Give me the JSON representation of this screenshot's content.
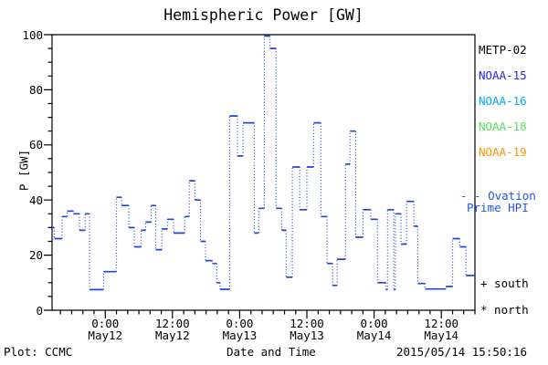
{
  "title": "Hemispheric Power [GW]",
  "y_axis": {
    "label": "P [GW]",
    "ticks": [
      0,
      20,
      40,
      60,
      80,
      100
    ],
    "minor_step": 5
  },
  "x_axis": {
    "label": "Date and Time",
    "major_hours": [
      0,
      12,
      24,
      36,
      48,
      60
    ],
    "minor_step_hours": 2,
    "ticks": [
      {
        "time": "0:00",
        "date": "May12"
      },
      {
        "time": "12:00",
        "date": "May12"
      },
      {
        "time": "0:00",
        "date": "May13"
      },
      {
        "time": "12:00",
        "date": "May13"
      },
      {
        "time": "0:00",
        "date": "May14"
      },
      {
        "time": "12:00",
        "date": "May14"
      }
    ]
  },
  "legend": [
    {
      "label": "METP-02",
      "color": "#000000"
    },
    {
      "label": "NOAA-15",
      "color": "#2222ff"
    },
    {
      "label": "NOAA-16",
      "color": "#00aaff"
    },
    {
      "label": "NOAA-18",
      "color": "#55e060"
    },
    {
      "label": "NOAA-19",
      "color": "#ff9500"
    }
  ],
  "annotations": {
    "ovation_line1": "- - Ovation",
    "ovation_line2": "Prime HPI",
    "ovation_color": "#2255ee",
    "south_marker": "+ south",
    "north_marker": "* north"
  },
  "footer": {
    "credit": "Plot: CCMC",
    "timestamp": "2015/05/14 15:50:16"
  },
  "chart_data": {
    "type": "line",
    "subtype": "step-histogram-dotted",
    "title": "Hemispheric Power [GW]",
    "xlabel": "Date and Time",
    "ylabel": "P [GW]",
    "ylim": [
      0,
      100
    ],
    "x_unit": "hours relative to 2015 May12 00:00",
    "x_range": [
      -9.5,
      66.0
    ],
    "grid": false,
    "legend_position": "right-outside",
    "series": [
      {
        "name": "Ovation Prime HPI",
        "color": "#2244dd",
        "style": "dotted-step",
        "points": [
          [
            -9.5,
            30
          ],
          [
            -9.1,
            26
          ],
          [
            -7.7,
            34
          ],
          [
            -6.8,
            36
          ],
          [
            -5.7,
            35
          ],
          [
            -4.6,
            29
          ],
          [
            -3.6,
            35
          ],
          [
            -2.8,
            7.5
          ],
          [
            -0.3,
            14
          ],
          [
            2.0,
            41
          ],
          [
            2.9,
            38
          ],
          [
            4.2,
            30
          ],
          [
            5.2,
            23
          ],
          [
            6.4,
            29
          ],
          [
            7.2,
            32
          ],
          [
            8.2,
            38
          ],
          [
            9.0,
            22
          ],
          [
            10.1,
            29.5
          ],
          [
            11.1,
            33
          ],
          [
            12.2,
            28
          ],
          [
            14.2,
            34
          ],
          [
            15.0,
            47
          ],
          [
            16.0,
            40
          ],
          [
            17.0,
            25
          ],
          [
            17.9,
            18
          ],
          [
            19.1,
            17
          ],
          [
            19.9,
            10
          ],
          [
            20.5,
            7.6
          ],
          [
            22.2,
            70.5
          ],
          [
            23.6,
            56
          ],
          [
            24.6,
            68
          ],
          [
            26.6,
            28
          ],
          [
            27.4,
            37
          ],
          [
            28.4,
            99.5
          ],
          [
            29.4,
            95
          ],
          [
            30.5,
            37
          ],
          [
            31.5,
            29
          ],
          [
            32.3,
            12
          ],
          [
            33.4,
            52
          ],
          [
            34.7,
            36.5
          ],
          [
            36.0,
            52
          ],
          [
            37.2,
            68
          ],
          [
            38.5,
            34
          ],
          [
            39.6,
            17
          ],
          [
            40.6,
            9
          ],
          [
            41.4,
            18.5
          ],
          [
            42.9,
            53
          ],
          [
            43.7,
            65
          ],
          [
            44.7,
            26.5
          ],
          [
            46.0,
            36.5
          ],
          [
            47.4,
            33
          ],
          [
            48.6,
            10
          ],
          [
            50.1,
            7.5
          ],
          [
            50.4,
            36.5
          ],
          [
            51.5,
            7.5
          ],
          [
            51.8,
            35
          ],
          [
            52.8,
            24
          ],
          [
            53.8,
            39.5
          ],
          [
            55.1,
            30.5
          ],
          [
            55.8,
            9.7
          ],
          [
            57.1,
            7.7
          ],
          [
            60.8,
            8.6
          ],
          [
            62.0,
            26
          ],
          [
            63.3,
            23
          ],
          [
            64.4,
            12.6
          ]
        ]
      }
    ]
  }
}
